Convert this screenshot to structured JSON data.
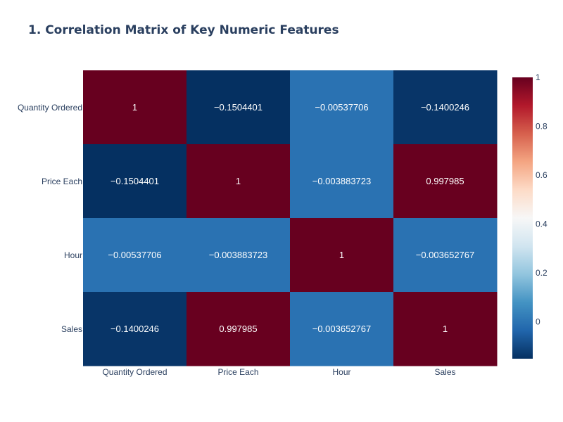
{
  "chart_data": {
    "type": "heatmap",
    "title": "1. Correlation Matrix of Key Numeric Features",
    "x_categories": [
      "Quantity Ordered",
      "Price Each",
      "Hour",
      "Sales"
    ],
    "y_categories": [
      "Quantity Ordered",
      "Price Each",
      "Hour",
      "Sales"
    ],
    "z": [
      [
        1,
        -0.1504401,
        -0.00537706,
        -0.1400246
      ],
      [
        -0.1504401,
        1,
        -0.003883723,
        0.997985
      ],
      [
        -0.00537706,
        -0.003883723,
        1,
        -0.003652767
      ],
      [
        -0.1400246,
        0.997985,
        -0.003652767,
        1
      ]
    ],
    "z_labels": [
      [
        "1",
        "−0.1504401",
        "−0.00537706",
        "−0.1400246"
      ],
      [
        "−0.1504401",
        "1",
        "−0.003883723",
        "0.997985"
      ],
      [
        "−0.00537706",
        "−0.003883723",
        "1",
        "−0.003652767"
      ],
      [
        "−0.1400246",
        "0.997985",
        "−0.003652767",
        "1"
      ]
    ],
    "zrange": [
      -0.1504401,
      1
    ],
    "colorscale": "RdBu reversed",
    "colorscale_stops": [
      "#053061",
      "#2166ac",
      "#4393c3",
      "#92c5de",
      "#d1e5f0",
      "#f7f7f7",
      "#fddbc7",
      "#f4a582",
      "#d6604d",
      "#b2182b",
      "#67001f"
    ],
    "colorbar_ticks": [
      0,
      0.2,
      0.4,
      0.6,
      0.8,
      1
    ],
    "colorbar_tick_labels": [
      "0",
      "0.2",
      "0.4",
      "0.6",
      "0.8",
      "1"
    ],
    "text_color": "#ffffff",
    "title_color": "#2a3f5f",
    "tick_color": "#2a3f5f"
  }
}
